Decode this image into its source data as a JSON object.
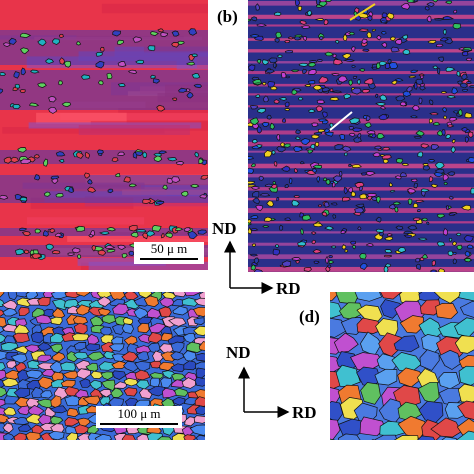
{
  "panels": [
    {
      "label": "(b)"
    },
    {
      "label": "(d)"
    }
  ],
  "scale_bars": [
    {
      "label": "50 μ m"
    },
    {
      "label": "100 μ m"
    }
  ],
  "axes": [
    {
      "vertical": "ND",
      "horizontal": "RD"
    },
    {
      "vertical": "ND",
      "horizontal": "RD"
    }
  ]
}
